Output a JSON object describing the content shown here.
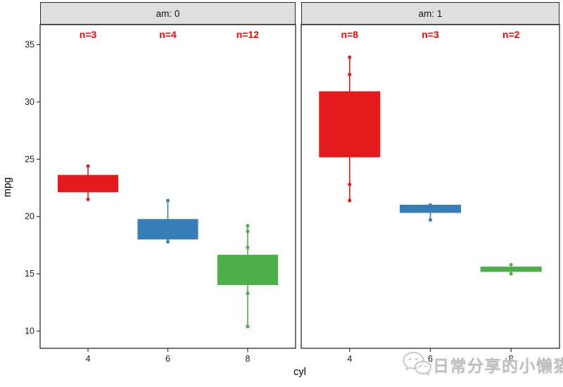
{
  "watermark": {
    "text": "日常分享的小懒猫",
    "icon": "wechat-icon",
    "color": "#c9c9c9"
  },
  "chart_data": {
    "type": "boxplot",
    "title": "",
    "xlabel": "cyl",
    "ylabel": "mpg",
    "x_categories": [
      "4",
      "6",
      "8"
    ],
    "y_ticks": [
      10,
      15,
      20,
      25,
      30,
      35
    ],
    "ylim": [
      8.5,
      36.75
    ],
    "grid": "off",
    "panel_background": "#ffffff",
    "strip_fill": "#DFDFDF",
    "border_color": "#2b2b2b",
    "annotation_color": "#FF0000",
    "annotation_y": 35.9,
    "facets": [
      {
        "label": "am: 0",
        "groups": [
          {
            "category": "4",
            "color": "#E41A1C",
            "n": 3,
            "n_label": "n=3",
            "q1": 22.15,
            "median": 22.8,
            "q3": 23.6,
            "whisker_low": 21.5,
            "whisker_high": 24.4,
            "points": [
              21.5,
              22.8,
              24.4
            ]
          },
          {
            "category": "6",
            "color": "#377EB8",
            "n": 4,
            "n_label": "n=4",
            "q1": 18.03,
            "median": 18.65,
            "q3": 19.75,
            "whisker_low": 17.8,
            "whisker_high": 21.4,
            "points": [
              17.8,
              18.1,
              19.2,
              21.4
            ]
          },
          {
            "category": "8",
            "color": "#4DAF4A",
            "n": 12,
            "n_label": "n=12",
            "q1": 14.05,
            "median": 15.2,
            "q3": 16.63,
            "whisker_low": 10.4,
            "whisker_high": 19.2,
            "points": [
              10.4,
              10.4,
              13.3,
              14.3,
              14.7,
              15.2,
              15.2,
              15.5,
              16.4,
              17.3,
              18.7,
              19.2
            ]
          }
        ]
      },
      {
        "label": "am: 1",
        "groups": [
          {
            "category": "4",
            "color": "#E41A1C",
            "n": 8,
            "n_label": "n=8",
            "q1": 25.2,
            "median": 28.85,
            "q3": 30.9,
            "whisker_low": 21.4,
            "whisker_high": 33.9,
            "points": [
              21.4,
              22.8,
              26.0,
              27.3,
              30.4,
              30.4,
              32.4,
              33.9
            ]
          },
          {
            "category": "6",
            "color": "#377EB8",
            "n": 3,
            "n_label": "n=3",
            "q1": 20.35,
            "median": 21.0,
            "q3": 21.0,
            "whisker_low": 19.7,
            "whisker_high": 21.0,
            "points": [
              19.7,
              21.0,
              21.0
            ]
          },
          {
            "category": "8",
            "color": "#4DAF4A",
            "n": 2,
            "n_label": "n=2",
            "q1": 15.2,
            "median": 15.4,
            "q3": 15.6,
            "whisker_low": 15.0,
            "whisker_high": 15.8,
            "points": [
              15.0,
              15.8
            ]
          }
        ]
      }
    ]
  }
}
